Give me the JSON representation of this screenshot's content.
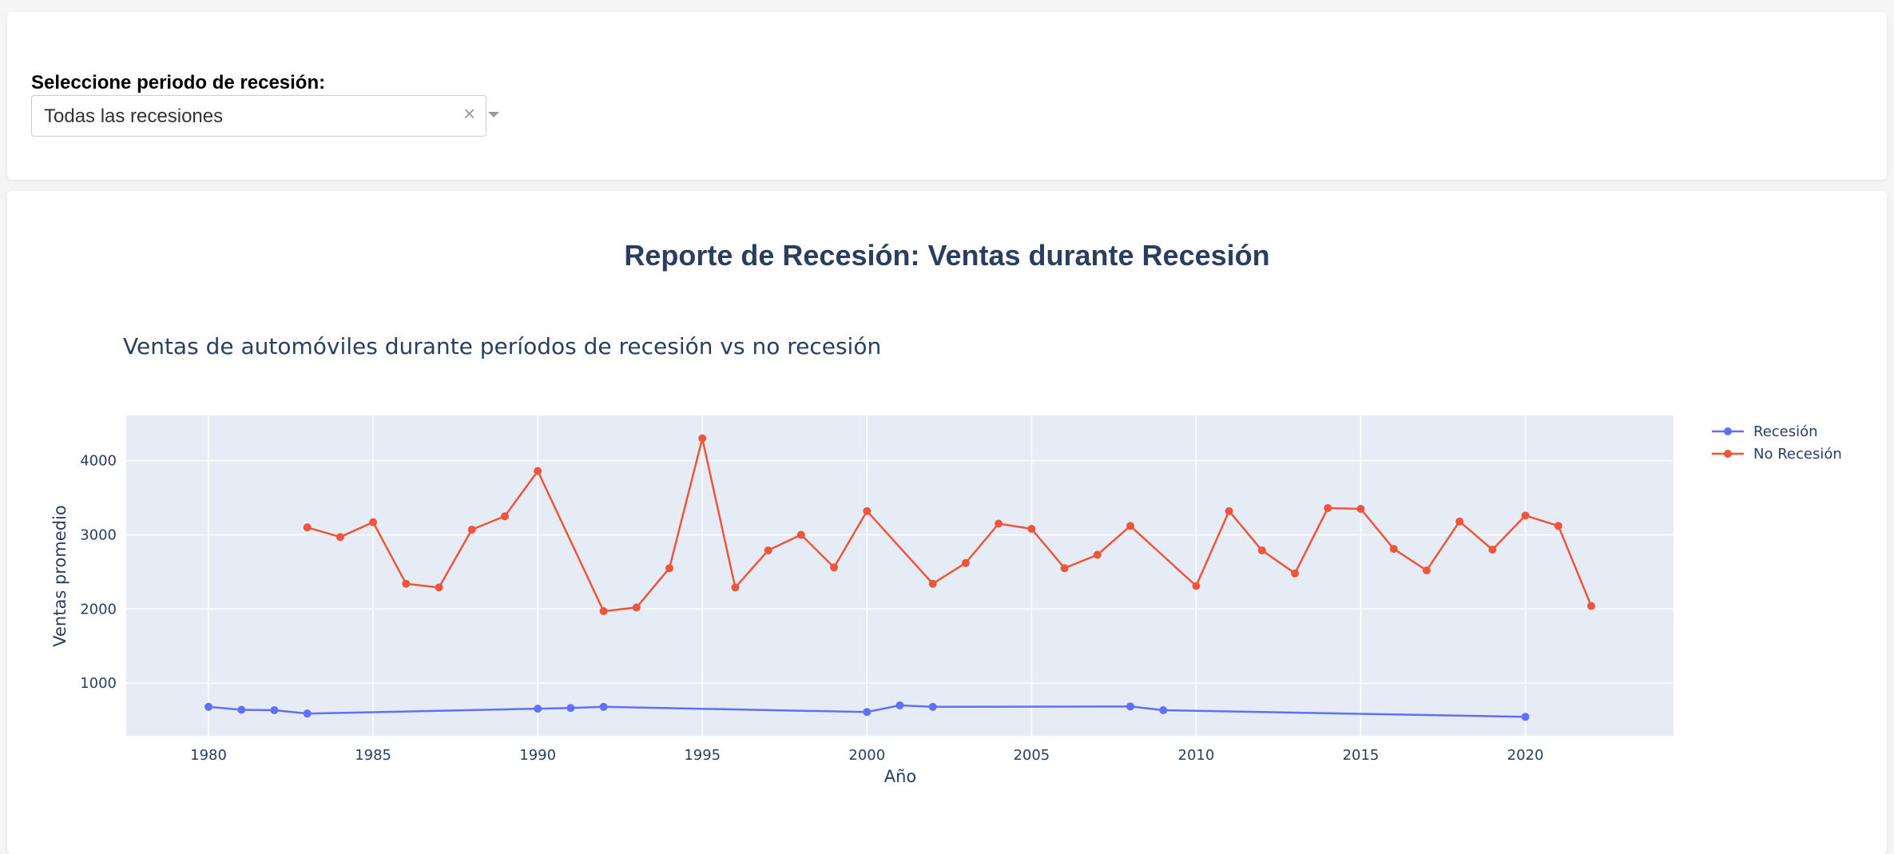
{
  "filter": {
    "label": "Seleccione periodo de recesión:",
    "selected": "Todas las recesiones",
    "clear_icon": "×"
  },
  "report": {
    "title": "Reporte de Recesión: Ventas durante Recesión"
  },
  "colors": {
    "recession": "#636efa",
    "no_recession": "#ef553b",
    "plot_bg": "#e5ecf6",
    "text": "#2a3f5f"
  },
  "chart_data": {
    "type": "line",
    "title": "Ventas de automóviles durante períodos de recesión vs no recesión",
    "xlabel": "Año",
    "ylabel": "Ventas promedio",
    "xlim": [
      1977.5,
      2024.5
    ],
    "ylim": [
      290,
      4610
    ],
    "xticks": [
      1980,
      1985,
      1990,
      1995,
      2000,
      2005,
      2010,
      2015,
      2020
    ],
    "yticks": [
      1000,
      2000,
      3000,
      4000
    ],
    "grid": true,
    "legend_position": "top-right",
    "series": [
      {
        "name": "Recesión",
        "color": "#636efa",
        "x": [
          1980,
          1981,
          1982,
          1983,
          1990,
          1991,
          1992,
          2000,
          2001,
          2002,
          2008,
          2009,
          2020
        ],
        "y": [
          680,
          640,
          635,
          590,
          655,
          665,
          680,
          610,
          700,
          680,
          685,
          635,
          545
        ]
      },
      {
        "name": "No Recesión",
        "color": "#ef553b",
        "x": [
          1983,
          1984,
          1985,
          1986,
          1987,
          1988,
          1989,
          1990,
          1992,
          1993,
          1994,
          1995,
          1996,
          1997,
          1998,
          1999,
          2000,
          2002,
          2003,
          2004,
          2005,
          2006,
          2007,
          2008,
          2010,
          2011,
          2012,
          2013,
          2014,
          2015,
          2016,
          2017,
          2018,
          2019,
          2020,
          2021,
          2022
        ],
        "y": [
          3100,
          2970,
          3170,
          2340,
          2290,
          3070,
          3250,
          3860,
          1970,
          2020,
          2550,
          4300,
          2290,
          2790,
          3000,
          2560,
          3320,
          2340,
          2620,
          3150,
          3080,
          2550,
          2730,
          3120,
          2310,
          3320,
          2790,
          2480,
          3360,
          3350,
          2810,
          2520,
          3180,
          2800,
          3260,
          3120,
          2040
        ]
      }
    ]
  }
}
